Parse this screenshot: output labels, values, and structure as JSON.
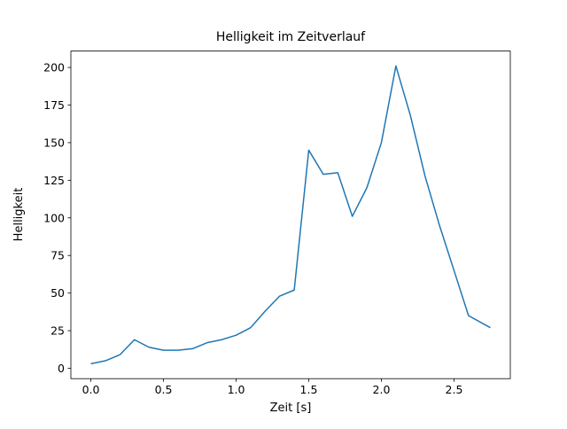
{
  "figure": {
    "background": "#ffffff"
  },
  "chart_data": {
    "type": "line",
    "title": "Helligkeit im Zeitverlauf",
    "xlabel": "Zeit [s]",
    "ylabel": "Helligkeit",
    "x": [
      0.0,
      0.1,
      0.2,
      0.3,
      0.4,
      0.5,
      0.6,
      0.7,
      0.8,
      0.9,
      1.0,
      1.1,
      1.2,
      1.3,
      1.4,
      1.5,
      1.6,
      1.7,
      1.8,
      1.9,
      2.0,
      2.1,
      2.2,
      2.3,
      2.4,
      2.5,
      2.6,
      2.75
    ],
    "y": [
      3,
      5,
      9,
      19,
      14,
      12,
      12,
      13,
      17,
      19,
      22,
      27,
      38,
      48,
      52,
      145,
      129,
      130,
      101,
      120,
      150,
      201,
      168,
      128,
      95,
      65,
      35,
      27
    ],
    "xlim": [
      -0.1375,
      2.8875
    ],
    "ylim": [
      -6.9,
      210.9
    ],
    "xticks": {
      "values": [
        0.0,
        0.5,
        1.0,
        1.5,
        2.0,
        2.5
      ],
      "labels": [
        "0.0",
        "0.5",
        "1.0",
        "1.5",
        "2.0",
        "2.5"
      ]
    },
    "yticks": {
      "values": [
        0,
        25,
        50,
        75,
        100,
        125,
        150,
        175,
        200
      ],
      "labels": [
        "0",
        "25",
        "50",
        "75",
        "100",
        "125",
        "150",
        "175",
        "200"
      ]
    },
    "line_color": "#1f77b4",
    "axis_color": "#000000",
    "grid": false,
    "legend": null
  }
}
